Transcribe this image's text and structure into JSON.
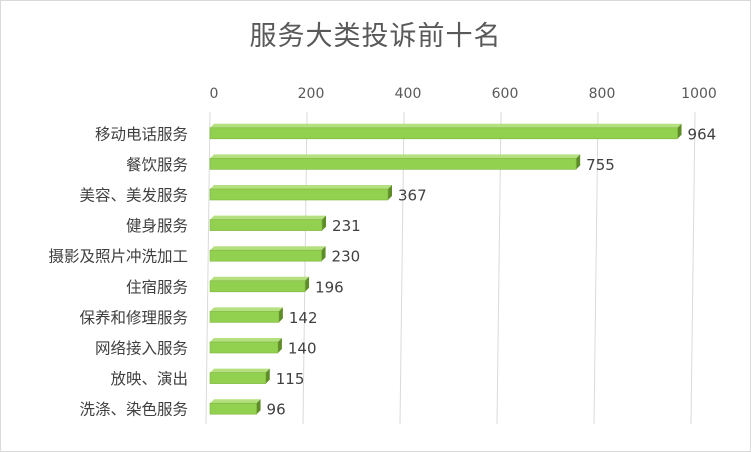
{
  "chart_data": {
    "type": "bar",
    "orientation": "horizontal",
    "title": "服务大类投诉前十名",
    "categories": [
      "移动电话服务",
      "餐饮服务",
      "美容、美发服务",
      "健身服务",
      "摄影及照片冲洗加工",
      "住宿服务",
      "保养和修理服务",
      "网络接入服务",
      "放映、演出",
      "洗涤、染色服务"
    ],
    "values": [
      964,
      755,
      367,
      231,
      230,
      196,
      142,
      140,
      115,
      96
    ],
    "xlim": [
      0,
      1000
    ],
    "x_ticks": [
      0,
      200,
      400,
      600,
      800,
      1000
    ],
    "x_axis_position": "top",
    "grid": true,
    "legend": "none",
    "data_labels": true,
    "bar_color": "#92d050",
    "bar_edge_color": "#5e8c28",
    "grid_color": "#d9d9d9",
    "text_color": "#595959",
    "label_color": "#404040"
  }
}
